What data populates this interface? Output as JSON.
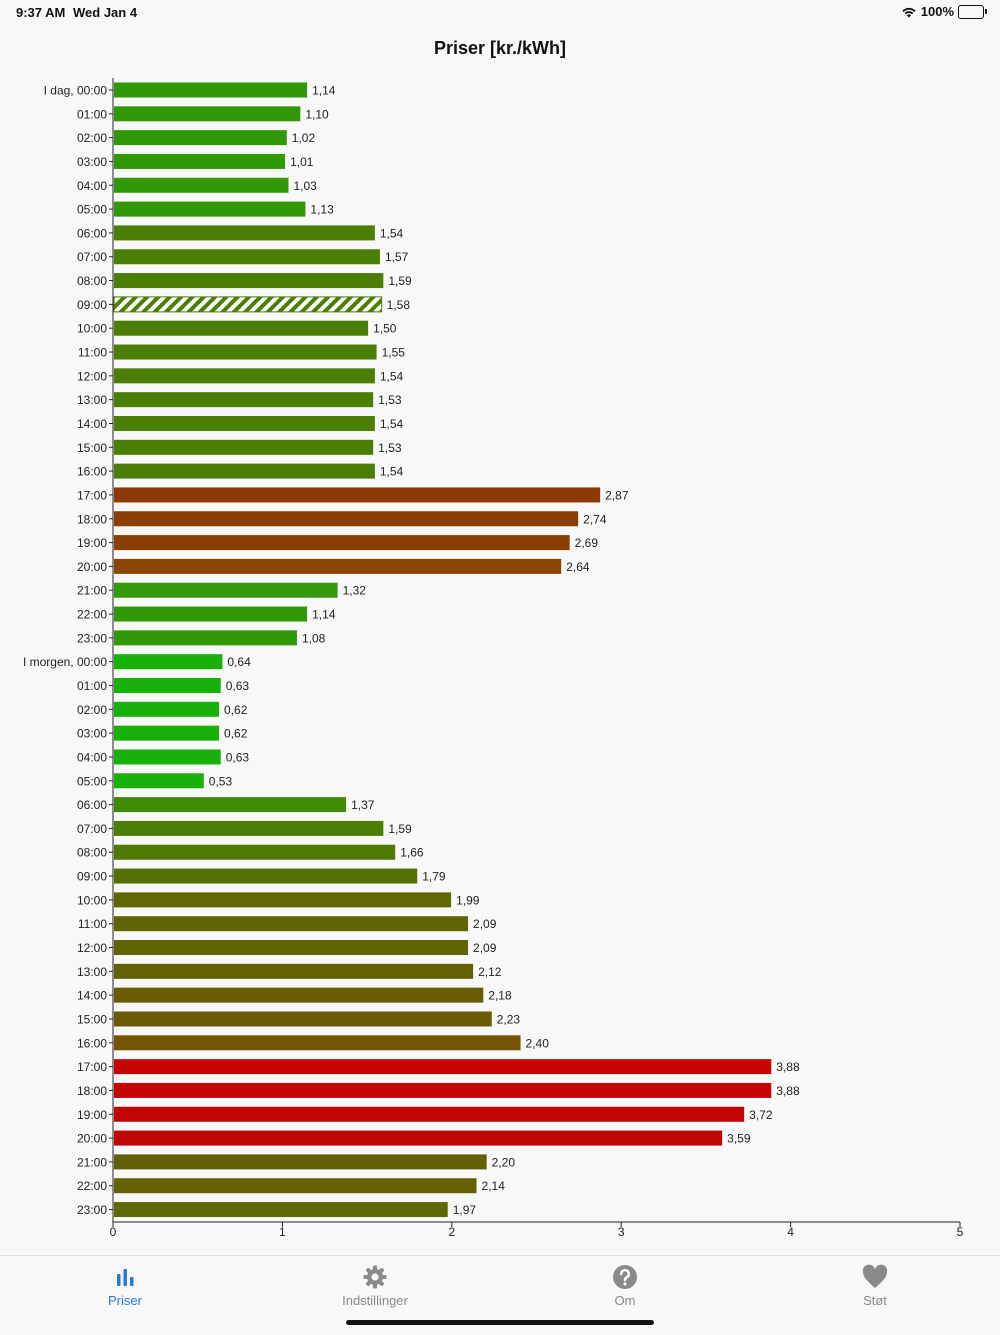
{
  "status_bar": {
    "time": "9:37 AM",
    "date": "Wed Jan 4",
    "battery": "100%",
    "icons": [
      "wifi-icon",
      "battery-icon"
    ]
  },
  "chart_data": {
    "type": "bar",
    "orientation": "horizontal",
    "title": "Priser [kr./kWh]",
    "xlim": [
      0,
      5
    ],
    "x_ticks": [
      "0",
      "1",
      "2",
      "3",
      "4",
      "5"
    ],
    "categories": [
      "I dag, 00:00",
      "01:00",
      "02:00",
      "03:00",
      "04:00",
      "05:00",
      "06:00",
      "07:00",
      "08:00",
      "09:00",
      "10:00",
      "11:00",
      "12:00",
      "13:00",
      "14:00",
      "15:00",
      "16:00",
      "17:00",
      "18:00",
      "19:00",
      "20:00",
      "21:00",
      "22:00",
      "23:00",
      "I morgen, 00:00",
      "01:00",
      "02:00",
      "03:00",
      "04:00",
      "05:00",
      "06:00",
      "07:00",
      "08:00",
      "09:00",
      "10:00",
      "11:00",
      "12:00",
      "13:00",
      "14:00",
      "15:00",
      "16:00",
      "17:00",
      "18:00",
      "19:00",
      "20:00",
      "21:00",
      "22:00",
      "23:00"
    ],
    "values": [
      1.14,
      1.1,
      1.02,
      1.01,
      1.03,
      1.13,
      1.54,
      1.57,
      1.59,
      1.58,
      1.5,
      1.55,
      1.54,
      1.53,
      1.54,
      1.53,
      1.54,
      2.87,
      2.74,
      2.69,
      2.64,
      1.32,
      1.14,
      1.08,
      0.64,
      0.63,
      0.62,
      0.62,
      0.63,
      0.53,
      1.37,
      1.59,
      1.66,
      1.79,
      1.99,
      2.09,
      2.09,
      2.12,
      2.18,
      2.23,
      2.4,
      3.88,
      3.88,
      3.72,
      3.59,
      2.2,
      2.14,
      1.97
    ],
    "value_labels": [
      "1,14",
      "1,10",
      "1,02",
      "1,01",
      "1,03",
      "1,13",
      "1,54",
      "1,57",
      "1,59",
      "1,58",
      "1,50",
      "1,55",
      "1,54",
      "1,53",
      "1,54",
      "1,53",
      "1,54",
      "2,87",
      "2,74",
      "2,69",
      "2,64",
      "1,32",
      "1,14",
      "1,08",
      "0,64",
      "0,63",
      "0,62",
      "0,62",
      "0,63",
      "0,53",
      "1,37",
      "1,59",
      "1,66",
      "1,79",
      "1,99",
      "2,09",
      "2,09",
      "2,12",
      "2,18",
      "2,23",
      "2,40",
      "3,88",
      "3,88",
      "3,72",
      "3,59",
      "2,20",
      "2,14",
      "1,97"
    ],
    "colors": [
      "#319807",
      "#319807",
      "#319807",
      "#319807",
      "#319807",
      "#319807",
      "#4a7e04",
      "#4a7e04",
      "#4a7e04",
      "#4a7e04",
      "#4a7e04",
      "#4a7e04",
      "#4a7e04",
      "#4a7e04",
      "#4a7e04",
      "#4a7e04",
      "#4a7e04",
      "#8a3a02",
      "#8a3f02",
      "#8a4002",
      "#8a4502",
      "#329a0a",
      "#319807",
      "#319807",
      "#19b00a",
      "#19b00a",
      "#19b00a",
      "#19b00a",
      "#19b00a",
      "#19b00a",
      "#3f8b05",
      "#4a7e04",
      "#4e7a04",
      "#557004",
      "#5f6704",
      "#616404",
      "#616404",
      "#646004",
      "#6a5c04",
      "#6b5b04",
      "#735503",
      "#c80303",
      "#c80303",
      "#c40404",
      "#c00505",
      "#635f04",
      "#646004",
      "#5e6804"
    ],
    "highlighted_index": 9,
    "grid": false
  },
  "tab_bar": {
    "active_color": "#2a7ad5",
    "inactive_color": "#8a8a8a",
    "tabs": [
      {
        "label": "Priser",
        "icon": "bar-chart-icon",
        "active": true
      },
      {
        "label": "Indstillinger",
        "icon": "gear-icon",
        "active": false
      },
      {
        "label": "Om",
        "icon": "question-icon",
        "active": false
      },
      {
        "label": "Støt",
        "icon": "heart-icon",
        "active": false
      }
    ]
  }
}
